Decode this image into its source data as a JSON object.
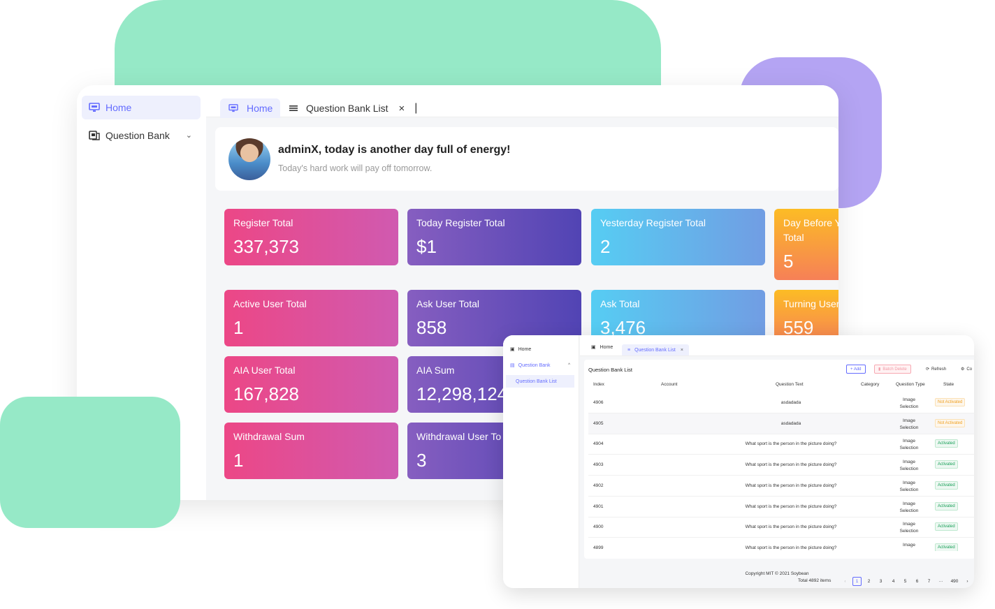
{
  "sidebar": {
    "items": [
      {
        "label": "Home",
        "icon": "monitor-icon"
      },
      {
        "label": "Question Bank",
        "icon": "book-icon"
      }
    ]
  },
  "tabs": [
    {
      "label": "Home",
      "icon": "monitor-icon"
    },
    {
      "label": "Question Bank List",
      "icon": "menu-icon"
    }
  ],
  "greeting": {
    "title": "adminX, today is another day full of energy!",
    "subtitle": "Today's hard work will pay off tomorrow."
  },
  "cards": [
    {
      "label": "Register Total",
      "value": "337,373",
      "color": "pink"
    },
    {
      "label": "Today Register Total",
      "value": "$1",
      "color": "purple"
    },
    {
      "label": "Yesterday Register Total",
      "value": "2",
      "color": "blue"
    },
    {
      "label": "Day Before Y Total",
      "value": "5",
      "color": "orange"
    },
    {
      "label": "Active User Total",
      "value": "1",
      "color": "pink"
    },
    {
      "label": "Ask User Total",
      "value": "858",
      "color": "purple"
    },
    {
      "label": "Ask Total",
      "value": "3,476",
      "color": "blue"
    },
    {
      "label": "Turning User",
      "value": "559",
      "color": "orange"
    },
    {
      "label": "AIA User Total",
      "value": "167,828",
      "color": "pink"
    },
    {
      "label": "AIA Sum",
      "value": "12,298,124",
      "color": "purple"
    },
    {
      "label": "Withdrawal Sum",
      "value": "1",
      "color": "pink"
    },
    {
      "label": "Withdrawal User To",
      "value": "3",
      "color": "purple"
    }
  ],
  "colors": {
    "accent": "#646cff",
    "pink": "#e04a92",
    "purple": "#6a52bb",
    "blue": "#62b6ec",
    "orange": "#f99e3e",
    "blob_green": "#96e9c7",
    "blob_purple": "#b4a4f3"
  },
  "window2": {
    "sidebar": {
      "home": "Home",
      "question_bank": "Question Bank",
      "question_bank_list": "Question Bank List"
    },
    "tabs": {
      "home": "Home",
      "list": "Question Bank List"
    },
    "title": "Question Bank List",
    "buttons": {
      "add": "+ Add",
      "batch_delete": "Batch Delete",
      "refresh": "Refresh",
      "columns": "Co"
    },
    "columns": [
      "Index",
      "Account",
      "Question Text",
      "Category",
      "Question Type",
      "State"
    ],
    "rows": [
      {
        "index": "4906",
        "text": "asdadada",
        "type_line1": "Image",
        "type_line2": "Selection",
        "state": "Not Activated"
      },
      {
        "index": "4905",
        "text": "asdadada",
        "type_line1": "Image",
        "type_line2": "Selection",
        "state": "Not Activated"
      },
      {
        "index": "4904",
        "text": "What sport is the person in the picture doing?",
        "type_line1": "Image",
        "type_line2": "Selection",
        "state": "Activated"
      },
      {
        "index": "4903",
        "text": "What sport is the person in the picture doing?",
        "type_line1": "Image",
        "type_line2": "Selection",
        "state": "Activated"
      },
      {
        "index": "4902",
        "text": "What sport is the person in the picture doing?",
        "type_line1": "Image",
        "type_line2": "Selection",
        "state": "Activated"
      },
      {
        "index": "4901",
        "text": "What sport is the person in the picture doing?",
        "type_line1": "Image",
        "type_line2": "Selection",
        "state": "Activated"
      },
      {
        "index": "4900",
        "text": "What sport is the person in the picture doing?",
        "type_line1": "Image",
        "type_line2": "Selection",
        "state": "Activated"
      },
      {
        "index": "4899",
        "text": "What sport is the person in the picture doing?",
        "type_line1": "Image",
        "type_line2": "",
        "state": "Activated"
      }
    ],
    "pagination": {
      "total": "Total 4892 items",
      "pages": [
        "1",
        "2",
        "3",
        "4",
        "5",
        "6",
        "7",
        "···",
        "490"
      ],
      "prev": "‹",
      "next": "›"
    },
    "footer": "Copyright MIT © 2021 Soybean"
  }
}
